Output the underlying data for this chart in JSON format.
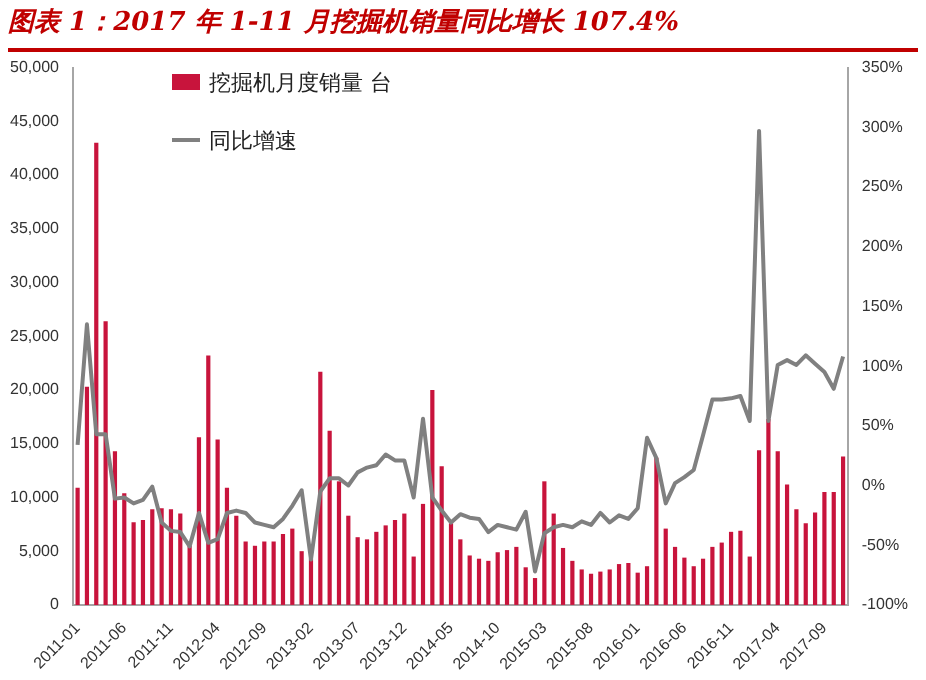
{
  "chart_data": {
    "type": "bar",
    "title": "图表 1：2017 年 1-11 月挖掘机销量同比增长 107.4%",
    "categories": [
      "2011-01",
      null,
      null,
      null,
      null,
      "2011-06",
      null,
      null,
      null,
      null,
      "2011-11",
      null,
      null,
      null,
      null,
      "2012-04",
      null,
      null,
      null,
      null,
      "2012-09",
      null,
      null,
      null,
      null,
      "2013-02",
      null,
      null,
      null,
      null,
      "2013-07",
      null,
      null,
      null,
      null,
      "2013-12",
      null,
      null,
      null,
      null,
      "2014-05",
      null,
      null,
      null,
      null,
      "2014-10",
      null,
      null,
      null,
      null,
      "2015-03",
      null,
      null,
      null,
      null,
      "2015-08",
      null,
      null,
      null,
      null,
      "2016-01",
      null,
      null,
      null,
      null,
      "2016-06",
      null,
      null,
      null,
      null,
      "2016-11",
      null,
      null,
      null,
      null,
      "2017-04",
      null,
      null,
      null,
      null,
      "2017-09",
      null,
      null
    ],
    "series": [
      {
        "name": "挖掘机月度销量 台",
        "color": "#c8143c",
        "values": [
          10900,
          20300,
          43000,
          26400,
          14300,
          10400,
          7700,
          7900,
          8900,
          9000,
          8900,
          8500,
          5500,
          15600,
          23200,
          15400,
          10900,
          8300,
          5900,
          5500,
          5900,
          5900,
          6600,
          7100,
          5000,
          4300,
          21700,
          16200,
          11500,
          8300,
          6300,
          6100,
          6800,
          7400,
          7900,
          8500,
          4500,
          9400,
          20000,
          12900,
          7600,
          6100,
          4600,
          4300,
          4100,
          4900,
          5100,
          5400,
          3500,
          2500,
          11500,
          8500,
          5300,
          4100,
          3300,
          2900,
          3100,
          3300,
          3800,
          3900,
          3000,
          3600,
          13700,
          7100,
          5400,
          4400,
          3600,
          4300,
          5400,
          5800,
          6800,
          6900,
          4500,
          14400,
          17300,
          14300,
          11200,
          8900,
          7600,
          8600,
          10500,
          10500,
          13800
        ]
      },
      {
        "name": "同比增速",
        "type": "line",
        "axis": "y2",
        "color": "#808080",
        "values": [
          34,
          135,
          43,
          43,
          -11,
          -10,
          -15,
          -12,
          -1,
          -31,
          -38,
          -39,
          -51,
          -23,
          -48,
          -45,
          -23,
          -21,
          -23,
          -31,
          -33,
          -35,
          -28,
          -17,
          -4,
          -62,
          -5,
          6,
          6,
          0,
          11,
          15,
          17,
          26,
          21,
          21,
          -10,
          56,
          -10,
          -21,
          -31,
          -24,
          -27,
          -28,
          -39,
          -33,
          -35,
          -37,
          -22,
          -72,
          -40,
          -35,
          -33,
          -35,
          -30,
          -33,
          -23,
          -31,
          -25,
          -28,
          -19,
          40,
          23,
          -15,
          2,
          7,
          13,
          42,
          72,
          72,
          73,
          75,
          54,
          297,
          54,
          101,
          105,
          101,
          109,
          102,
          95,
          81,
          108
        ]
      }
    ],
    "ylim": [
      0,
      50000
    ],
    "yticks": [
      0,
      {
        "value": 5000,
        "label": "5,000"
      },
      {
        "value": 10000,
        "label": "10,000"
      },
      {
        "value": 15000,
        "label": "15,000"
      },
      {
        "value": 20000,
        "label": "20,000"
      },
      {
        "value": 25000,
        "label": "25,000"
      },
      {
        "value": 30000,
        "label": "30,000"
      },
      {
        "value": 35000,
        "label": "35,000"
      },
      {
        "value": 40000,
        "label": "40,000"
      },
      {
        "value": 45000,
        "label": "45,000"
      },
      {
        "value": 50000,
        "label": "50,000"
      }
    ],
    "y2lim": [
      -100,
      350
    ],
    "y2ticks": [
      {
        "value": -100,
        "label": "-100%"
      },
      {
        "value": -50,
        "label": "-50%"
      },
      {
        "value": 0,
        "label": "0%"
      },
      {
        "value": 50,
        "label": "50%"
      },
      {
        "value": 100,
        "label": "100%"
      },
      {
        "value": 150,
        "label": "150%"
      },
      {
        "value": 200,
        "label": "200%"
      },
      {
        "value": 250,
        "label": "250%"
      },
      {
        "value": 300,
        "label": "300%"
      },
      {
        "value": 350,
        "label": "350%"
      }
    ],
    "legend": "top"
  }
}
